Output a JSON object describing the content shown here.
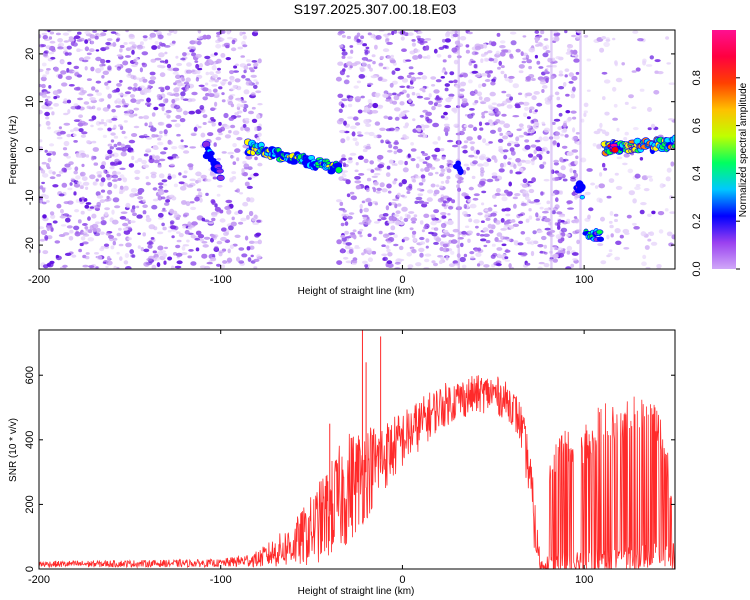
{
  "title": "S197.2025.307.00.18.E03",
  "chart_data": [
    {
      "type": "heatmap",
      "name": "spectrogram",
      "xlabel": "Height of straight line (km)",
      "ylabel": "Frequency (Hz)",
      "xlim": [
        -200,
        150
      ],
      "ylim": [
        -25,
        25
      ],
      "xticks": [
        -200,
        -100,
        0,
        100
      ],
      "yticks": [
        -20,
        -10,
        0,
        10,
        20
      ],
      "colorbar": {
        "label": "Normalized spectral amplitude",
        "range": [
          0.0,
          1.0
        ],
        "ticks": [
          0.0,
          0.2,
          0.4,
          0.6,
          0.8
        ],
        "tick_labels": [
          "0.0",
          "0.2",
          "0.4",
          "0.6",
          "0.8"
        ],
        "colors": [
          "#ffffff",
          "#c9a8f0",
          "#8a2be2",
          "#0000ff",
          "#00e5ff",
          "#00ff40",
          "#ffff00",
          "#ff8000",
          "#ff0000",
          "#ff0090"
        ]
      },
      "noise_regions": [
        {
          "x_from": -200,
          "x_to": -78
        },
        {
          "x_from": -35,
          "x_to": 97
        },
        {
          "x_from": 97,
          "x_to": 150,
          "sparse": true
        }
      ],
      "vertical_streaks": [
        {
          "x": 31,
          "f_from": -25,
          "f_to": 25
        },
        {
          "x": 82,
          "f_from": -25,
          "f_to": 25
        },
        {
          "x": 98,
          "f_from": -25,
          "f_to": 25
        }
      ],
      "tone_segments": [
        {
          "x_from": -108,
          "x_to": -100,
          "f_from": 0,
          "f_to": -5,
          "amplitude": 0.25
        },
        {
          "x_from": -85,
          "x_to": -35,
          "f_from": 0.5,
          "f_to": -4,
          "amplitude": 0.45
        },
        {
          "x_from": 30,
          "x_to": 32,
          "f_from": -3,
          "f_to": -5,
          "amplitude": 0.3
        },
        {
          "x_from": 96,
          "x_to": 99,
          "f_from": -7,
          "f_to": -9,
          "amplitude": 0.3
        },
        {
          "x_from": 101,
          "x_to": 109,
          "f_from": -18,
          "f_to": -18,
          "amplitude": 0.4
        },
        {
          "x_from": 111,
          "x_to": 150,
          "f_from": 0.3,
          "f_to": 1.2,
          "amplitude": 0.55
        },
        {
          "x_from": 114,
          "x_to": 117,
          "f_from": 0.5,
          "f_to": 0.5,
          "amplitude": 0.9
        }
      ]
    },
    {
      "type": "line",
      "name": "snr",
      "xlabel": "Height of straight line (km)",
      "ylabel": "SNR (10 * v/v)",
      "xlim": [
        -200,
        150
      ],
      "ylim": [
        0,
        740
      ],
      "xticks": [
        -200,
        -100,
        0,
        100
      ],
      "yticks": [
        0,
        200,
        400,
        600
      ],
      "color": "#ff2a2a",
      "envelope": {
        "x": [
          -200,
          -100,
          -80,
          -60,
          -50,
          -40,
          -30,
          -20,
          -10,
          0,
          10,
          20,
          30,
          40,
          50,
          60,
          65,
          70,
          73,
          76,
          80,
          90,
          100,
          110,
          120,
          130,
          140,
          150
        ],
        "base": [
          15,
          18,
          30,
          75,
          120,
          180,
          250,
          300,
          350,
          400,
          450,
          500,
          525,
          540,
          545,
          510,
          450,
          300,
          120,
          10,
          15,
          20,
          25,
          25,
          30,
          35,
          40,
          40
        ],
        "spread": [
          10,
          12,
          25,
          70,
          110,
          150,
          180,
          150,
          110,
          90,
          80,
          70,
          65,
          60,
          60,
          60,
          70,
          90,
          90,
          20,
          30,
          40,
          40,
          40,
          40,
          40,
          40,
          40
        ]
      },
      "upper_band": {
        "x_from": 80,
        "x_to": 148,
        "x": [
          80,
          90,
          100,
          110,
          120,
          130,
          140,
          148
        ],
        "top": [
          370,
          440,
          440,
          520,
          500,
          560,
          520,
          320
        ]
      },
      "spikes": [
        {
          "x": -22,
          "y": 740
        },
        {
          "x": -12,
          "y": 720
        },
        {
          "x": -20,
          "y": 640
        },
        {
          "x": -40,
          "y": 450
        }
      ]
    }
  ]
}
